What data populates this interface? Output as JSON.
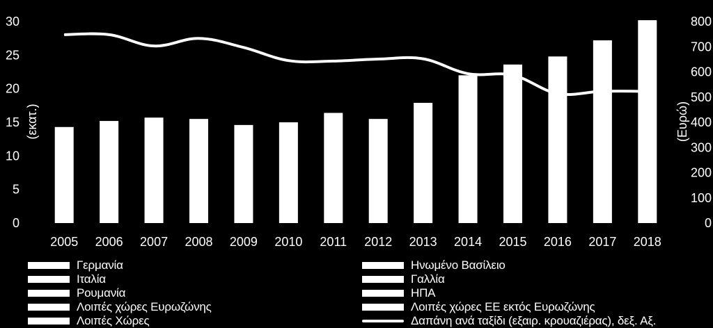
{
  "chart_data": {
    "type": "bar",
    "categories": [
      "2005",
      "2006",
      "2007",
      "2008",
      "2009",
      "2010",
      "2011",
      "2012",
      "2013",
      "2014",
      "2015",
      "2016",
      "2017",
      "2018"
    ],
    "series": [
      {
        "axis": "left",
        "type": "bar",
        "color": "#ffffff",
        "values": [
          14.3,
          15.2,
          15.7,
          15.5,
          14.6,
          15.0,
          16.4,
          15.5,
          17.9,
          22.0,
          23.6,
          24.8,
          27.2,
          30.2
        ]
      },
      {
        "name": "Δαπάνη ανά ταξίδι (εξαιρ. κρουαζιέρας), δεξ. Αξ.",
        "axis": "right",
        "type": "line",
        "color": "#ffffff",
        "values": [
          748,
          748,
          703,
          733,
          697,
          645,
          643,
          651,
          652,
          593,
          587,
          514,
          523,
          523
        ]
      }
    ],
    "y_left": {
      "label": "(εκατ.)",
      "lim": [
        0,
        30
      ],
      "ticks": [
        0,
        5,
        10,
        15,
        20,
        25,
        30
      ]
    },
    "y_right": {
      "label": "(Ευρώ)",
      "lim": [
        0,
        800
      ],
      "ticks": [
        0,
        100,
        200,
        300,
        400,
        500,
        600,
        700,
        800
      ]
    },
    "grid": false,
    "legend_position": "bottom",
    "legend": [
      {
        "label": "Γερμανία",
        "marker": "bar"
      },
      {
        "label": "Ηνωμένο Βασίλειο",
        "marker": "bar"
      },
      {
        "label": "Ιταλία",
        "marker": "bar"
      },
      {
        "label": "Γαλλία",
        "marker": "bar"
      },
      {
        "label": "Ρουμανία",
        "marker": "bar"
      },
      {
        "label": "ΗΠΑ",
        "marker": "bar"
      },
      {
        "label": "Λοιπές χώρες Ευρωζώνης",
        "marker": "bar"
      },
      {
        "label": "Λοιπές χώρες ΕΕ  εκτός Ευρωζώνης",
        "marker": "bar"
      },
      {
        "label": "Λοιπές Χώρες",
        "marker": "bar"
      },
      {
        "label": "Δαπάνη ανά ταξίδι (εξαιρ. κρουαζιέρας), δεξ. Αξ.",
        "marker": "line"
      }
    ]
  }
}
